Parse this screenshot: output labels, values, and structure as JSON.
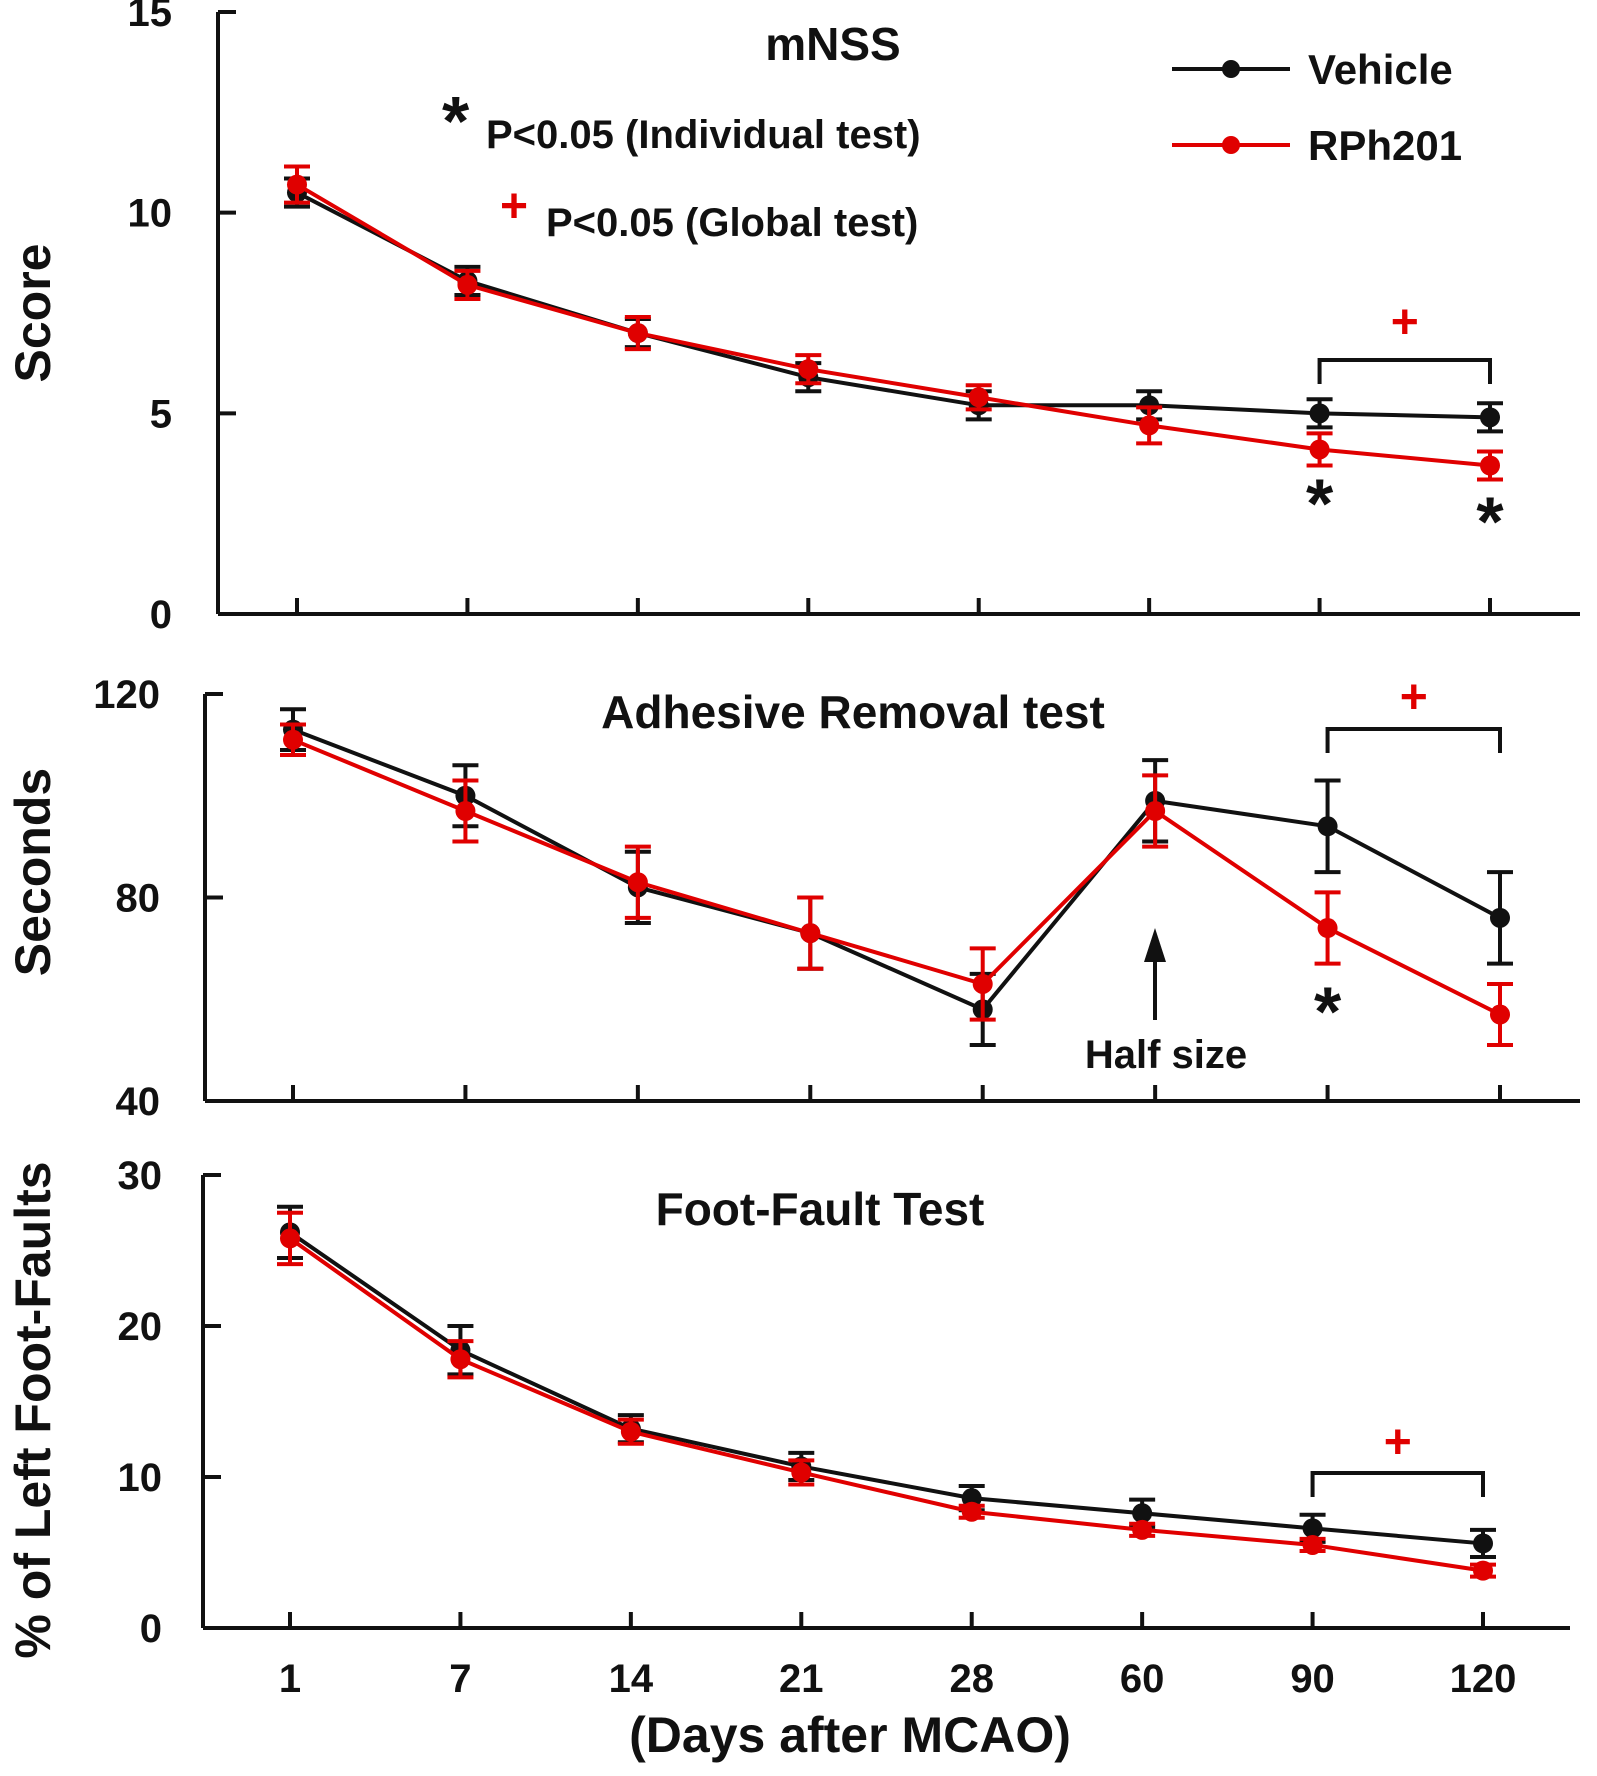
{
  "chart_data": [
    {
      "type": "line",
      "title": "mNSS",
      "ylabel": "Score",
      "xlabel": "",
      "ylim": [
        0,
        15
      ],
      "yticks": [
        0,
        5,
        10,
        15
      ],
      "categories": [
        "1",
        "7",
        "14",
        "21",
        "28",
        "60",
        "90",
        "120"
      ],
      "series": [
        {
          "name": "Vehicle",
          "color": "#111111",
          "values": [
            10.5,
            8.3,
            7.0,
            5.9,
            5.2,
            5.2,
            5.0,
            4.9
          ],
          "errors": [
            0.35,
            0.35,
            0.35,
            0.35,
            0.35,
            0.35,
            0.35,
            0.35
          ]
        },
        {
          "name": "RPh201",
          "color": "#e00000",
          "values": [
            10.7,
            8.2,
            7.0,
            6.1,
            5.4,
            4.7,
            4.1,
            3.7
          ],
          "errors": [
            0.45,
            0.35,
            0.4,
            0.35,
            0.3,
            0.45,
            0.4,
            0.35
          ]
        }
      ],
      "annotations": {
        "individual_note": "P<0.05 (Individual test)",
        "global_note": "P<0.05 (Global test)",
        "star_symbol": "*",
        "plus_symbol": "+"
      },
      "significance_stars": [
        {
          "category": "90",
          "symbol": "*"
        },
        {
          "category": "120",
          "symbol": "*"
        }
      ],
      "global_bracket": {
        "from": "90",
        "to": "120",
        "symbol": "+"
      }
    },
    {
      "type": "line",
      "title": "Adhesive Removal test",
      "ylabel": "Seconds",
      "xlabel": "",
      "ylim": [
        40,
        120
      ],
      "yticks": [
        40,
        80,
        120
      ],
      "categories": [
        "1",
        "7",
        "14",
        "21",
        "28",
        "60",
        "90",
        "120"
      ],
      "series": [
        {
          "name": "Vehicle",
          "color": "#111111",
          "values": [
            113,
            100,
            82,
            73,
            58,
            99,
            94,
            76
          ],
          "errors": [
            4,
            6,
            7,
            7,
            7,
            8,
            9,
            9
          ]
        },
        {
          "name": "RPh201",
          "color": "#e00000",
          "values": [
            111,
            97,
            83,
            73,
            63,
            97,
            74,
            57
          ],
          "errors": [
            3,
            6,
            7,
            7,
            7,
            7,
            7,
            6
          ]
        }
      ],
      "annotations": {
        "arrow_label": "Half size",
        "arrow_category": "60"
      },
      "significance_stars": [
        {
          "category": "90",
          "symbol": "*"
        }
      ],
      "global_bracket": {
        "from": "90",
        "to": "120",
        "symbol": "+"
      }
    },
    {
      "type": "line",
      "title": "Foot-Fault Test",
      "ylabel": "% of Left Foot-Faults",
      "xlabel": "(Days after MCAO)",
      "ylim": [
        0,
        30
      ],
      "yticks": [
        0,
        10,
        20,
        30
      ],
      "categories": [
        "1",
        "7",
        "14",
        "21",
        "28",
        "60",
        "90",
        "120"
      ],
      "series": [
        {
          "name": "Vehicle",
          "color": "#111111",
          "values": [
            26.2,
            18.4,
            13.2,
            10.7,
            8.6,
            7.6,
            6.6,
            5.6
          ],
          "errors": [
            1.7,
            1.6,
            0.9,
            0.9,
            0.8,
            0.9,
            0.9,
            0.9
          ]
        },
        {
          "name": "RPh201",
          "color": "#e00000",
          "values": [
            25.8,
            17.8,
            13.0,
            10.3,
            7.7,
            6.5,
            5.5,
            3.8
          ],
          "errors": [
            1.7,
            1.2,
            0.8,
            0.8,
            0.4,
            0.4,
            0.4,
            0.4
          ]
        }
      ],
      "significance_stars": [],
      "global_bracket": {
        "from": "90",
        "to": "120",
        "symbol": "+"
      }
    }
  ],
  "legend": {
    "entries": [
      {
        "label": "Vehicle",
        "color": "#111111"
      },
      {
        "label": "RPh201",
        "color": "#e00000"
      }
    ],
    "placement": "top-right"
  }
}
